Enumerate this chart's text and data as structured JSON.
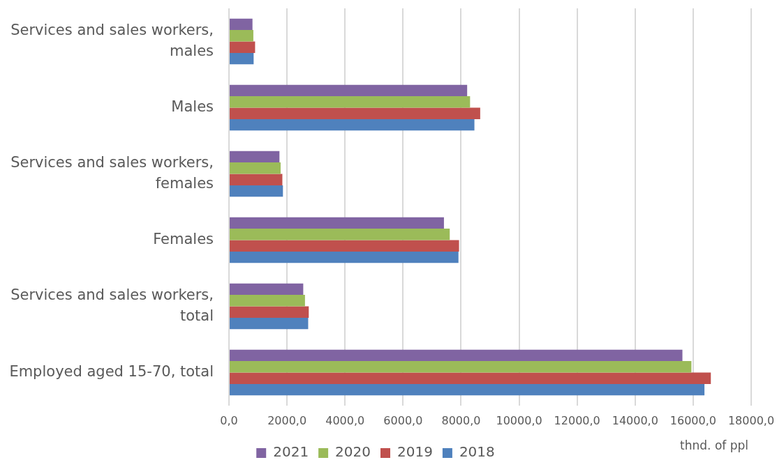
{
  "chart_data": {
    "type": "bar",
    "orientation": "horizontal",
    "categories": [
      "Services and sales workers, males",
      "Males",
      "Services and sales workers, females",
      "Females",
      "Services and sales workers, total",
      "Employed aged 15-70, total"
    ],
    "series": [
      {
        "name": "2021",
        "color": "#8064a2",
        "values": [
          810,
          8210,
          1740,
          7410,
          2560,
          15630
        ]
      },
      {
        "name": "2020",
        "color": "#9bbb59",
        "values": [
          840,
          8310,
          1780,
          7610,
          2620,
          15940
        ]
      },
      {
        "name": "2019",
        "color": "#c0504d",
        "values": [
          900,
          8660,
          1840,
          7930,
          2750,
          16610
        ]
      },
      {
        "name": "2018",
        "color": "#4f81bd",
        "values": [
          850,
          8460,
          1860,
          7910,
          2730,
          16390
        ]
      }
    ],
    "xlim": [
      0,
      18000
    ],
    "xticks": [
      {
        "value": 0,
        "label": "0,0"
      },
      {
        "value": 2000,
        "label": "2000,0"
      },
      {
        "value": 4000,
        "label": "4000,0"
      },
      {
        "value": 6000,
        "label": "6000,0"
      },
      {
        "value": 8000,
        "label": "8000,0"
      },
      {
        "value": 10000,
        "label": "10000,0"
      },
      {
        "value": 12000,
        "label": "12000,0"
      },
      {
        "value": 14000,
        "label": "14000,0"
      },
      {
        "value": 16000,
        "label": "16000,0"
      },
      {
        "value": 18000,
        "label": "18000,0"
      }
    ],
    "xlabel": "thnd. of ppl",
    "grid": "x",
    "legend": "bottom"
  }
}
